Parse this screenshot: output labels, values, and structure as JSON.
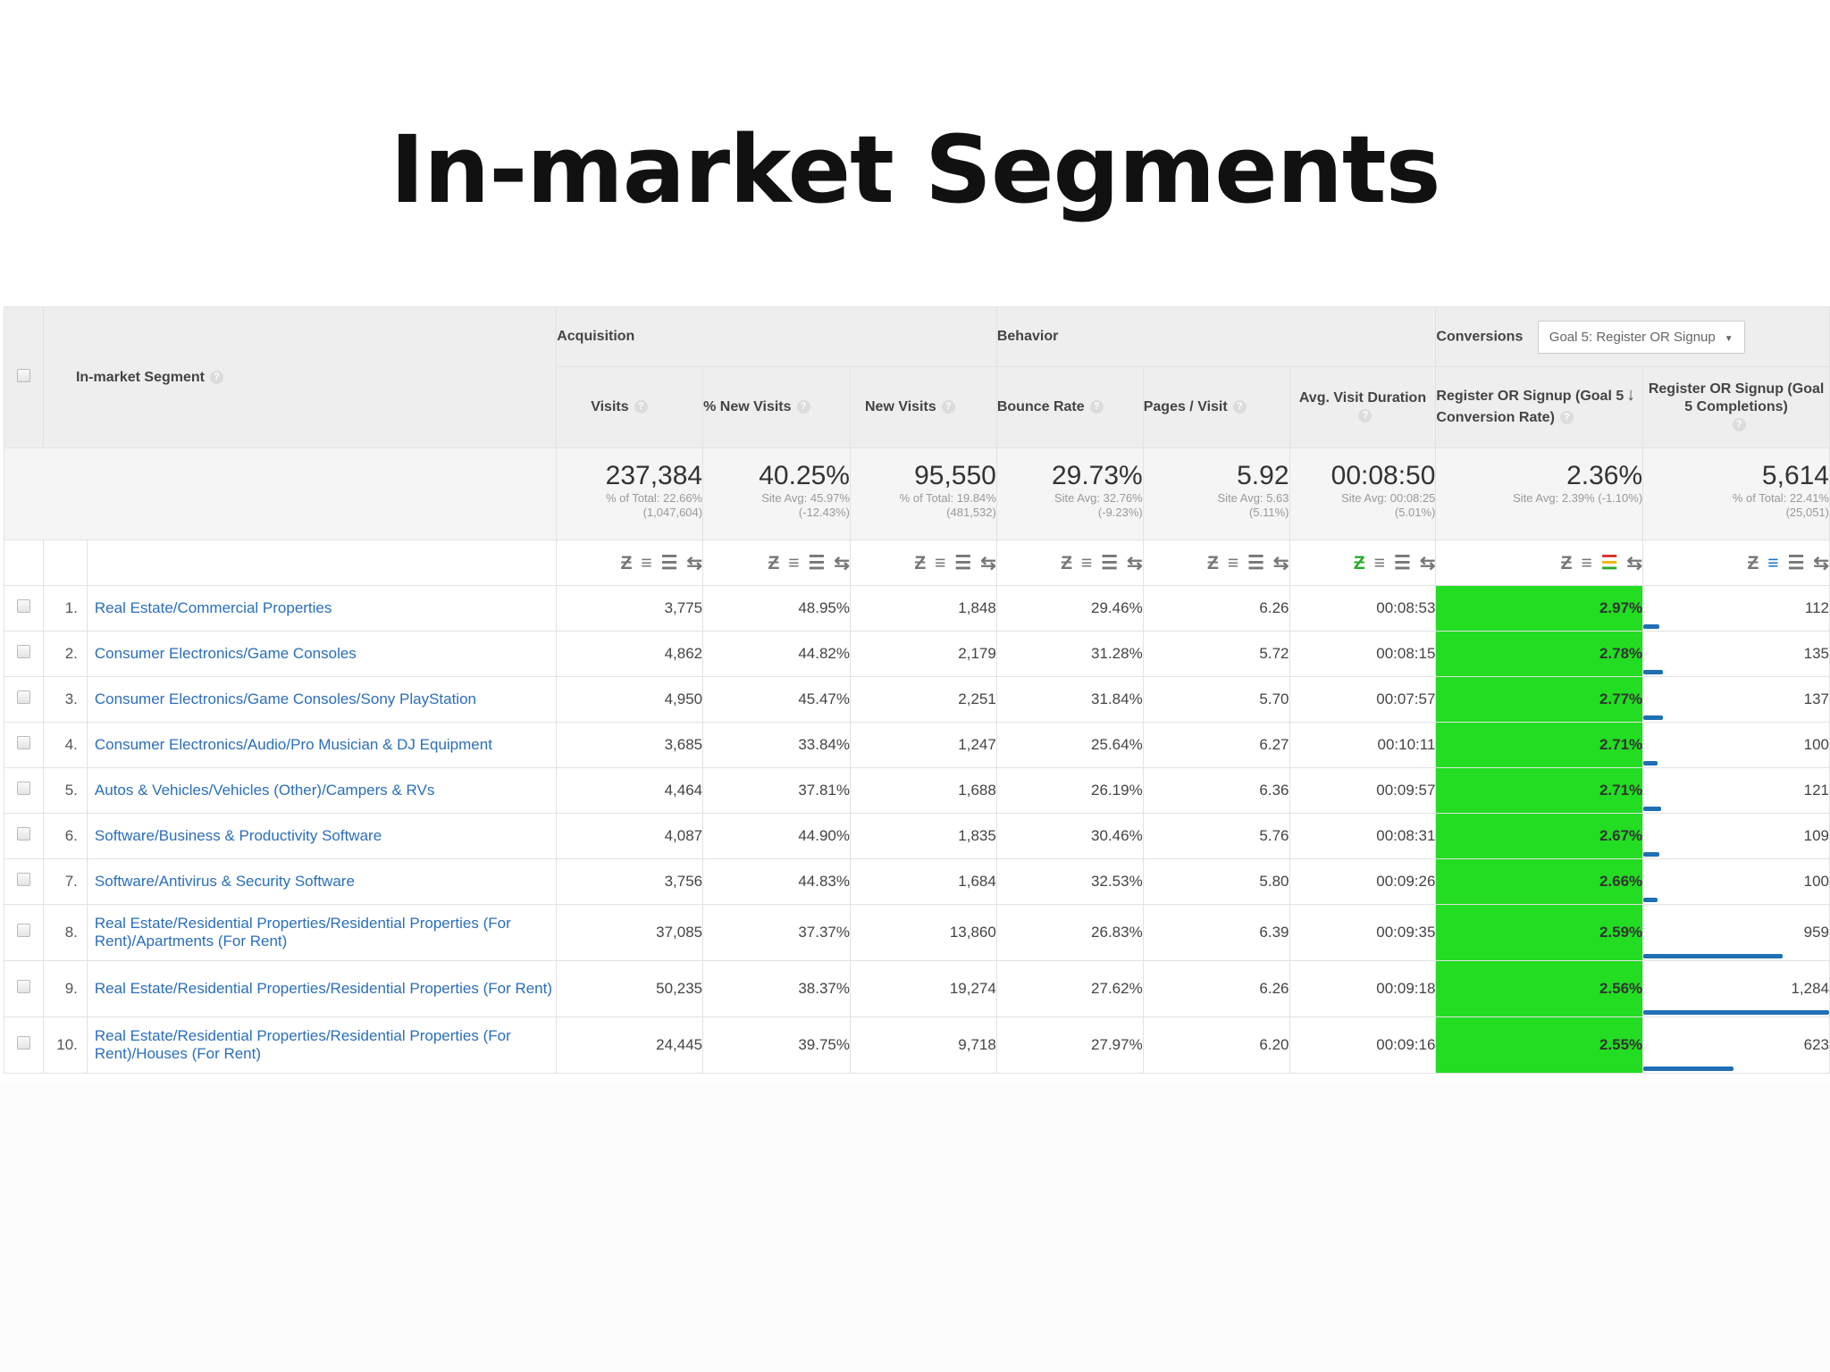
{
  "slide": {
    "title": "In-market Segments"
  },
  "groups": {
    "acquisition": "Acquisition",
    "behavior": "Behavior",
    "conversions": "Conversions",
    "goal_select": "Goal 5: Register OR Signup"
  },
  "headers": {
    "segment": "In-market Segment",
    "visits": "Visits",
    "pct_new_visits": "% New Visits",
    "new_visits": "New Visits",
    "bounce_rate": "Bounce Rate",
    "pages_visit": "Pages / Visit",
    "avg_visit_duration": "Avg. Visit Duration",
    "conv_rate": "Register OR Signup (Goal 5 Conversion Rate)",
    "completions": "Register OR Signup (Goal 5 Completions)"
  },
  "totals": {
    "visits": {
      "value": "237,384",
      "sub1": "% of Total: 22.66%",
      "sub2": "(1,047,604)"
    },
    "pct_new_visits": {
      "value": "40.25%",
      "sub1": "Site Avg: 45.97%",
      "sub2": "(-12.43%)"
    },
    "new_visits": {
      "value": "95,550",
      "sub1": "% of Total: 19.84%",
      "sub2": "(481,532)"
    },
    "bounce_rate": {
      "value": "29.73%",
      "sub1": "Site Avg: 32.76%",
      "sub2": "(-9.23%)"
    },
    "pages_visit": {
      "value": "5.92",
      "sub1": "Site Avg: 5.63",
      "sub2": "(5.11%)"
    },
    "avg_visit_duration": {
      "value": "00:08:50",
      "sub1": "Site Avg: 00:08:25",
      "sub2": "(5.01%)"
    },
    "conv_rate": {
      "value": "2.36%",
      "sub1": "Site Avg: 2.39% (-1.10%)",
      "sub2": ""
    },
    "completions": {
      "value": "5,614",
      "sub1": "% of Total: 22.41%",
      "sub2": "(25,051)"
    }
  },
  "rows": [
    {
      "idx": "1.",
      "seg": "Real Estate/Commercial Properties",
      "visits": "3,775",
      "pnv": "48.95%",
      "nv": "1,848",
      "br": "29.46%",
      "pv": "6.26",
      "dur": "00:08:53",
      "cr": "2.97%",
      "comp": "112",
      "comp_fraction": 0.087
    },
    {
      "idx": "2.",
      "seg": "Consumer Electronics/Game Consoles",
      "visits": "4,862",
      "pnv": "44.82%",
      "nv": "2,179",
      "br": "31.28%",
      "pv": "5.72",
      "dur": "00:08:15",
      "cr": "2.78%",
      "comp": "135",
      "comp_fraction": 0.105
    },
    {
      "idx": "3.",
      "seg": "Consumer Electronics/Game Consoles/Sony PlayStation",
      "visits": "4,950",
      "pnv": "45.47%",
      "nv": "2,251",
      "br": "31.84%",
      "pv": "5.70",
      "dur": "00:07:57",
      "cr": "2.77%",
      "comp": "137",
      "comp_fraction": 0.107
    },
    {
      "idx": "4.",
      "seg": "Consumer Electronics/Audio/Pro Musician & DJ Equipment",
      "visits": "3,685",
      "pnv": "33.84%",
      "nv": "1,247",
      "br": "25.64%",
      "pv": "6.27",
      "dur": "00:10:11",
      "cr": "2.71%",
      "comp": "100",
      "comp_fraction": 0.078
    },
    {
      "idx": "5.",
      "seg": "Autos & Vehicles/Vehicles (Other)/Campers & RVs",
      "visits": "4,464",
      "pnv": "37.81%",
      "nv": "1,688",
      "br": "26.19%",
      "pv": "6.36",
      "dur": "00:09:57",
      "cr": "2.71%",
      "comp": "121",
      "comp_fraction": 0.094
    },
    {
      "idx": "6.",
      "seg": "Software/Business & Productivity Software",
      "visits": "4,087",
      "pnv": "44.90%",
      "nv": "1,835",
      "br": "30.46%",
      "pv": "5.76",
      "dur": "00:08:31",
      "cr": "2.67%",
      "comp": "109",
      "comp_fraction": 0.085
    },
    {
      "idx": "7.",
      "seg": "Software/Antivirus & Security Software",
      "visits": "3,756",
      "pnv": "44.83%",
      "nv": "1,684",
      "br": "32.53%",
      "pv": "5.80",
      "dur": "00:09:26",
      "cr": "2.66%",
      "comp": "100",
      "comp_fraction": 0.078
    },
    {
      "idx": "8.",
      "seg": "Real Estate/Residential Properties/Residential Properties (For Rent)/Apartments (For Rent)",
      "visits": "37,085",
      "pnv": "37.37%",
      "nv": "13,860",
      "br": "26.83%",
      "pv": "6.39",
      "dur": "00:09:35",
      "cr": "2.59%",
      "comp": "959",
      "comp_fraction": 0.747
    },
    {
      "idx": "9.",
      "seg": "Real Estate/Residential Properties/Residential Properties (For Rent)",
      "visits": "50,235",
      "pnv": "38.37%",
      "nv": "19,274",
      "br": "27.62%",
      "pv": "6.26",
      "dur": "00:09:18",
      "cr": "2.56%",
      "comp": "1,284",
      "comp_fraction": 1.0
    },
    {
      "idx": "10.",
      "seg": "Real Estate/Residential Properties/Residential Properties (For Rent)/Houses (For Rent)",
      "visits": "24,445",
      "pnv": "39.75%",
      "nv": "9,718",
      "br": "27.97%",
      "pv": "6.20",
      "dur": "00:09:16",
      "cr": "2.55%",
      "comp": "623",
      "comp_fraction": 0.485
    }
  ],
  "colors": {
    "highlight_green": "#22dd22",
    "link_blue": "#2a6ebb",
    "bar_blue": "#1f6fb5"
  },
  "tool_icons": [
    "data-table-icon",
    "percentage-icon",
    "performance-icon",
    "comparison-icon"
  ]
}
